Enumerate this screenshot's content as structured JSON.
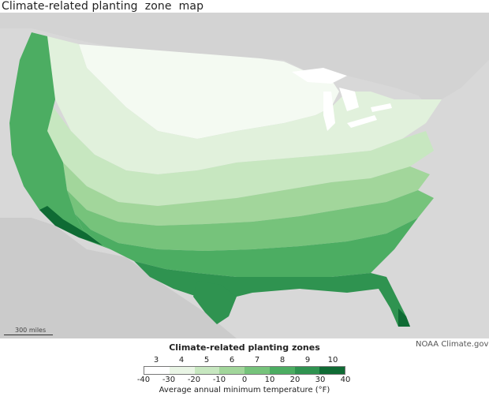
{
  "title": "Climate-related planting  zone  map",
  "scale": {
    "label": "300 miles"
  },
  "credit": "NOAA Climate.gov",
  "legend": {
    "title": "Climate-related planting zones",
    "subtitle": "Average annual minimum temperature (°F)",
    "zones": [
      {
        "zone": "3",
        "color": "#ffffff"
      },
      {
        "zone": "4",
        "color": "#e9f5e5"
      },
      {
        "zone": "5",
        "color": "#c7e7c0"
      },
      {
        "zone": "6",
        "color": "#a2d69b"
      },
      {
        "zone": "7",
        "color": "#76c37b"
      },
      {
        "zone": "8",
        "color": "#4cad62"
      },
      {
        "zone": "9",
        "color": "#2f9350"
      },
      {
        "zone": "10",
        "color": "#0f6b34"
      }
    ],
    "temps": [
      "-40",
      "-30",
      "-20",
      "-10",
      "0",
      "10",
      "20",
      "30",
      "40"
    ]
  },
  "map": {
    "region": "Contiguous United States",
    "background_color": "#d8d8d8",
    "land_outside_color": "#cfcfcf",
    "water_color": "#ffffff"
  }
}
